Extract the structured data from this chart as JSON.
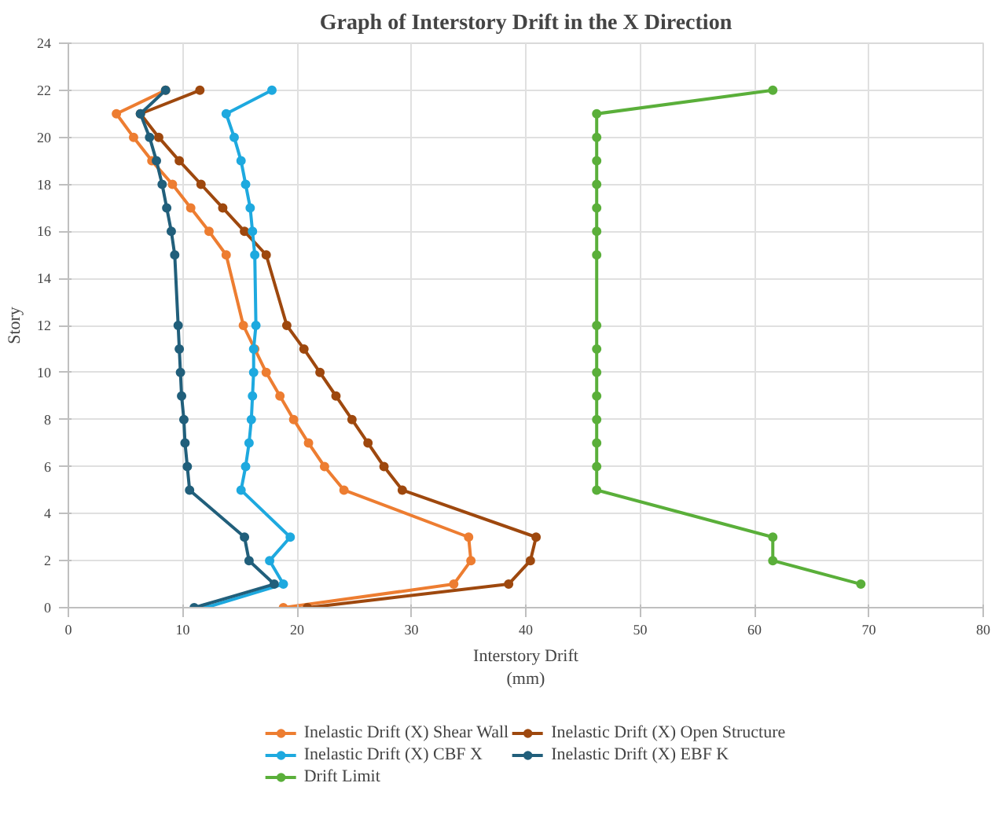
{
  "chart_data": {
    "type": "line",
    "title": "Graph of Interstory Drift in the X Direction",
    "xlabel": "Interstory Drift\n(mm)",
    "ylabel": "Story",
    "xlim": [
      0,
      80
    ],
    "xticks": [
      0,
      10,
      20,
      30,
      40,
      50,
      60,
      70,
      80
    ],
    "ylim": [
      0,
      24
    ],
    "yticks": [
      0,
      2,
      4,
      6,
      8,
      10,
      12,
      14,
      16,
      18,
      20,
      22,
      24
    ],
    "grid": true,
    "legend": "bottom",
    "marker": "circle",
    "line_style": "solid",
    "series": [
      {
        "name": "Inelastic Drift (X) Shear Wall",
        "color": "#ed7d31",
        "x": [
          8.5,
          4.2,
          5.7,
          7.3,
          9.1,
          10.7,
          12.3,
          13.8,
          15.3,
          16.3,
          17.3,
          18.5,
          19.7,
          21.0,
          22.4,
          24.1,
          35.0,
          35.2,
          33.7,
          18.8
        ],
        "values": [
          22,
          21,
          20,
          19,
          18,
          17,
          16,
          15,
          12,
          11,
          10,
          9,
          8,
          7,
          6,
          5,
          3,
          2,
          1,
          0
        ]
      },
      {
        "name": "Inelastic Drift (X) Open Structure",
        "color": "#9e480e",
        "x": [
          11.5,
          6.3,
          7.9,
          9.7,
          11.6,
          13.5,
          15.4,
          17.3,
          19.1,
          20.6,
          22.0,
          23.4,
          24.8,
          26.2,
          27.6,
          29.2,
          40.9,
          40.4,
          38.5,
          20.9
        ],
        "values": [
          22,
          21,
          20,
          19,
          18,
          17,
          16,
          15,
          12,
          11,
          10,
          9,
          8,
          7,
          6,
          5,
          3,
          2,
          1,
          0
        ]
      },
      {
        "name": "Inelastic Drift (X) CBF X",
        "color": "#1ea9df",
        "x": [
          17.8,
          13.8,
          14.5,
          15.1,
          15.5,
          15.9,
          16.1,
          16.3,
          16.4,
          16.2,
          16.2,
          16.1,
          16.0,
          15.8,
          15.5,
          15.1,
          19.4,
          17.6,
          18.8,
          12.0
        ],
        "values": [
          22,
          21,
          20,
          19,
          18,
          17,
          16,
          15,
          12,
          11,
          10,
          9,
          8,
          7,
          6,
          5,
          3,
          2,
          1,
          0
        ]
      },
      {
        "name": "Inelastic Drift (X) EBF K",
        "color": "#215f7b",
        "x": [
          8.5,
          6.3,
          7.1,
          7.7,
          8.2,
          8.6,
          9.0,
          9.3,
          9.6,
          9.7,
          9.8,
          9.9,
          10.1,
          10.2,
          10.4,
          10.6,
          15.4,
          15.8,
          18.0,
          11.0
        ],
        "values": [
          22,
          21,
          20,
          19,
          18,
          17,
          16,
          15,
          12,
          11,
          10,
          9,
          8,
          7,
          6,
          5,
          3,
          2,
          1,
          0
        ]
      },
      {
        "name": "Drift Limit",
        "color": "#5aaf3a",
        "x": [
          61.6,
          46.2,
          46.2,
          46.2,
          46.2,
          46.2,
          46.2,
          46.2,
          46.2,
          46.2,
          46.2,
          46.2,
          46.2,
          46.2,
          46.2,
          46.2,
          61.6,
          61.6,
          69.3
        ],
        "values": [
          22,
          21,
          20,
          19,
          18,
          17,
          16,
          15,
          12,
          11,
          10,
          9,
          8,
          7,
          6,
          5,
          3,
          2,
          1
        ]
      }
    ]
  }
}
